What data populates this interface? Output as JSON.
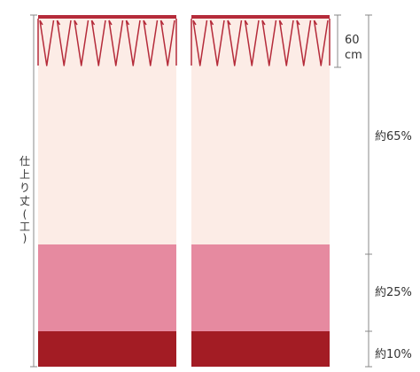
{
  "labels": {
    "vertical_parts": [
      "仕",
      "上",
      "り",
      "丈",
      "(",
      "工",
      ")"
    ],
    "header_value": "60",
    "header_unit": "cm",
    "section_top": "約65%",
    "section_mid": "約25%",
    "section_bottom": "約10%"
  },
  "colors": {
    "top_band": "#fcece6",
    "middle_band": "#e68aa0",
    "bottom_band": "#a31c24",
    "header_bar": "#b52b3a",
    "pleat_line": "#b52b3a",
    "dim_line": "#888888"
  },
  "proportions": {
    "top_percent": 65,
    "middle_percent": 25,
    "bottom_percent": 10
  }
}
